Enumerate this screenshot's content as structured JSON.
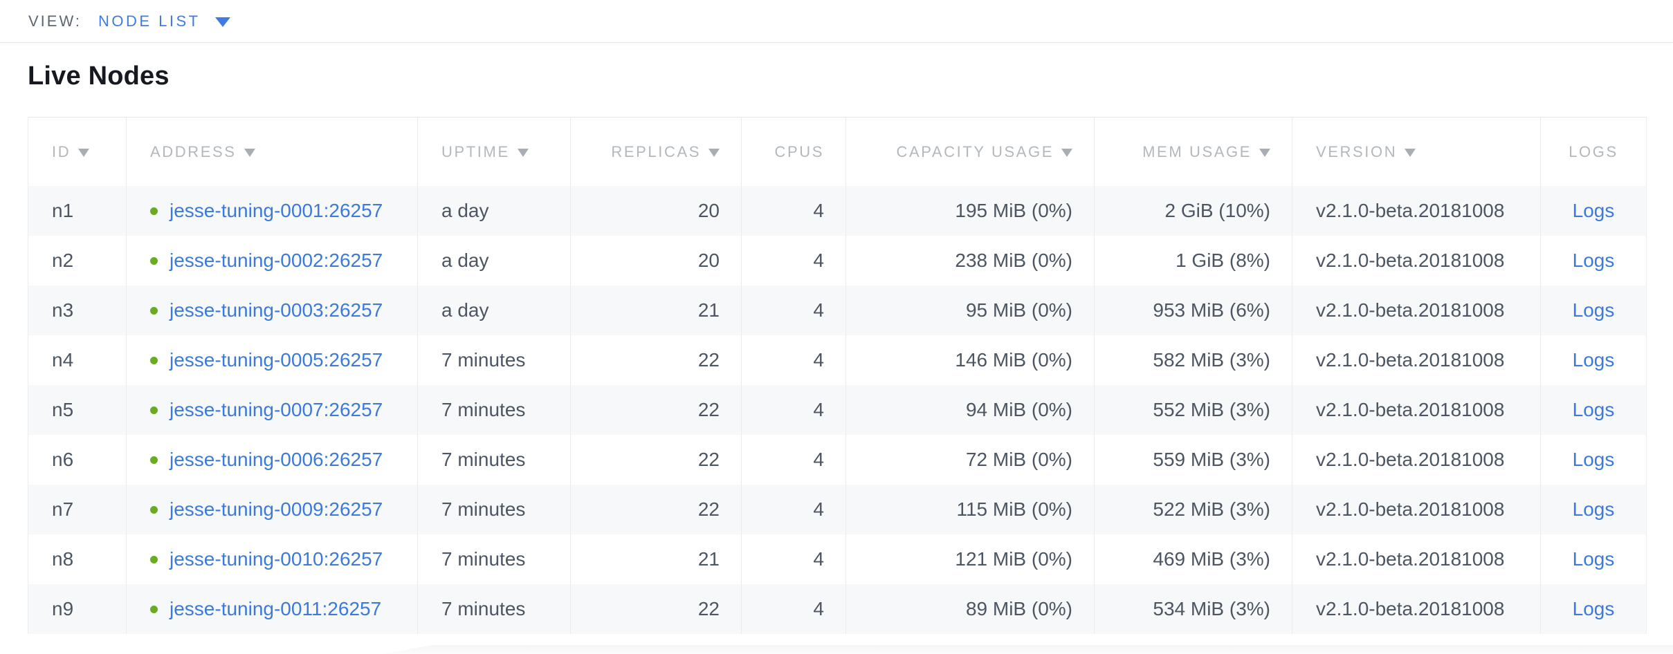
{
  "view_bar": {
    "label": "VIEW:",
    "selected": "NODE LIST",
    "dropdown_icon": "chevron-down-icon"
  },
  "page": {
    "title": "Live Nodes"
  },
  "table": {
    "columns": [
      {
        "key": "id",
        "label": "ID",
        "sortable": true,
        "align": "left"
      },
      {
        "key": "address",
        "label": "ADDRESS",
        "sortable": true,
        "align": "left"
      },
      {
        "key": "uptime",
        "label": "UPTIME",
        "sortable": true,
        "align": "left"
      },
      {
        "key": "replicas",
        "label": "REPLICAS",
        "sortable": true,
        "align": "right"
      },
      {
        "key": "cpus",
        "label": "CPUS",
        "sortable": false,
        "align": "right"
      },
      {
        "key": "capacity",
        "label": "CAPACITY USAGE",
        "sortable": true,
        "align": "right"
      },
      {
        "key": "mem",
        "label": "MEM USAGE",
        "sortable": true,
        "align": "right"
      },
      {
        "key": "version",
        "label": "VERSION",
        "sortable": true,
        "align": "left"
      },
      {
        "key": "logs",
        "label": "LOGS",
        "sortable": false,
        "align": "center"
      }
    ],
    "rows": [
      {
        "id": "n1",
        "status": "live",
        "address": "jesse-tuning-0001:26257",
        "uptime": "a day",
        "replicas": "20",
        "cpus": "4",
        "capacity": "195 MiB (0%)",
        "mem": "2 GiB (10%)",
        "version": "v2.1.0-beta.20181008",
        "logs": "Logs"
      },
      {
        "id": "n2",
        "status": "live",
        "address": "jesse-tuning-0002:26257",
        "uptime": "a day",
        "replicas": "20",
        "cpus": "4",
        "capacity": "238 MiB (0%)",
        "mem": "1 GiB (8%)",
        "version": "v2.1.0-beta.20181008",
        "logs": "Logs"
      },
      {
        "id": "n3",
        "status": "live",
        "address": "jesse-tuning-0003:26257",
        "uptime": "a day",
        "replicas": "21",
        "cpus": "4",
        "capacity": "95 MiB (0%)",
        "mem": "953 MiB (6%)",
        "version": "v2.1.0-beta.20181008",
        "logs": "Logs"
      },
      {
        "id": "n4",
        "status": "live",
        "address": "jesse-tuning-0005:26257",
        "uptime": "7 minutes",
        "replicas": "22",
        "cpus": "4",
        "capacity": "146 MiB (0%)",
        "mem": "582 MiB (3%)",
        "version": "v2.1.0-beta.20181008",
        "logs": "Logs"
      },
      {
        "id": "n5",
        "status": "live",
        "address": "jesse-tuning-0007:26257",
        "uptime": "7 minutes",
        "replicas": "22",
        "cpus": "4",
        "capacity": "94 MiB (0%)",
        "mem": "552 MiB (3%)",
        "version": "v2.1.0-beta.20181008",
        "logs": "Logs"
      },
      {
        "id": "n6",
        "status": "live",
        "address": "jesse-tuning-0006:26257",
        "uptime": "7 minutes",
        "replicas": "22",
        "cpus": "4",
        "capacity": "72 MiB (0%)",
        "mem": "559 MiB (3%)",
        "version": "v2.1.0-beta.20181008",
        "logs": "Logs"
      },
      {
        "id": "n7",
        "status": "live",
        "address": "jesse-tuning-0009:26257",
        "uptime": "7 minutes",
        "replicas": "22",
        "cpus": "4",
        "capacity": "115 MiB (0%)",
        "mem": "522 MiB (3%)",
        "version": "v2.1.0-beta.20181008",
        "logs": "Logs"
      },
      {
        "id": "n8",
        "status": "live",
        "address": "jesse-tuning-0010:26257",
        "uptime": "7 minutes",
        "replicas": "21",
        "cpus": "4",
        "capacity": "121 MiB (0%)",
        "mem": "469 MiB (3%)",
        "version": "v2.1.0-beta.20181008",
        "logs": "Logs"
      },
      {
        "id": "n9",
        "status": "live",
        "address": "jesse-tuning-0011:26257",
        "uptime": "7 minutes",
        "replicas": "22",
        "cpus": "4",
        "capacity": "89 MiB (0%)",
        "mem": "534 MiB (3%)",
        "version": "v2.1.0-beta.20181008",
        "logs": "Logs"
      }
    ]
  },
  "colors": {
    "accent_blue": "#3f7ce2",
    "link_blue": "#3b79da",
    "live_dot_green": "#69ac21",
    "header_gray": "#b3b8bd",
    "row_stripe": "#f7f8f9"
  }
}
